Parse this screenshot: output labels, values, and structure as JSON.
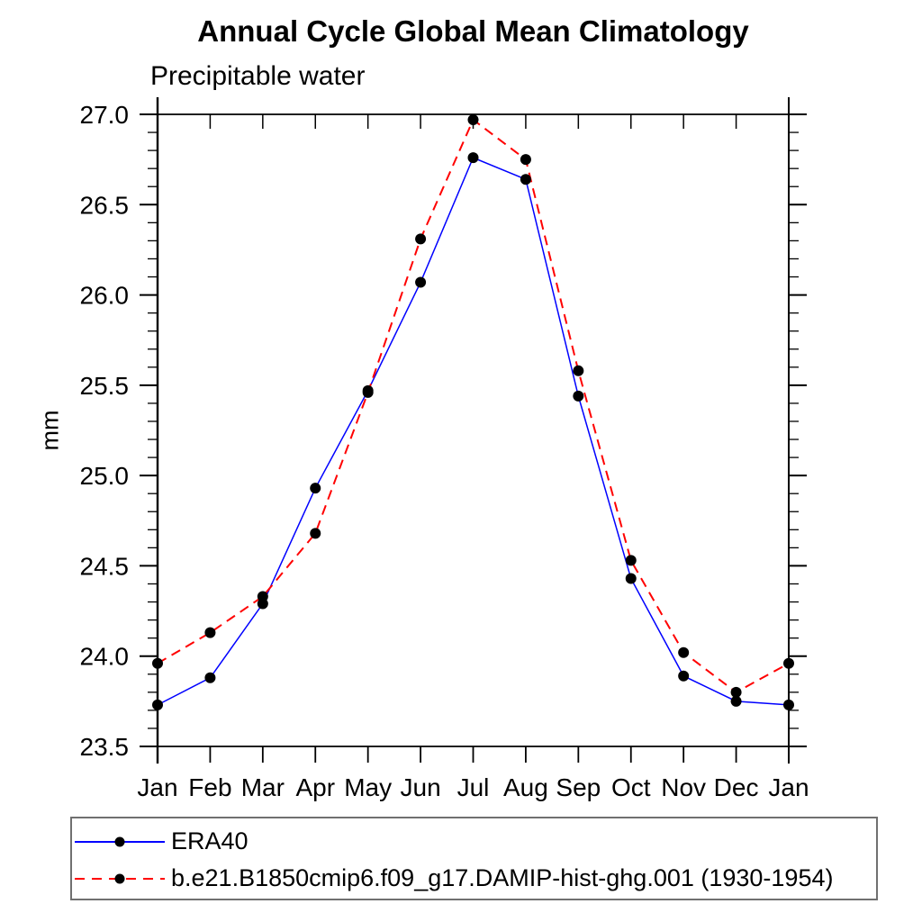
{
  "page": {
    "background": "#ffffff"
  },
  "chart_data": {
    "type": "line",
    "title": "Annual Cycle Global Mean Climatology",
    "subtitle": "Precipitable water",
    "ylabel": "mm",
    "xlabel": "",
    "categories": [
      "Jan",
      "Feb",
      "Mar",
      "Apr",
      "May",
      "Jun",
      "Jul",
      "Aug",
      "Sep",
      "Oct",
      "Nov",
      "Dec",
      "Jan"
    ],
    "ylim": [
      23.5,
      27.0
    ],
    "ytick_major_step": 0.5,
    "ytick_minor_step": 0.1,
    "ytick_labels": [
      "23.5",
      "24.0",
      "24.5",
      "25.0",
      "25.5",
      "26.0",
      "26.5",
      "27.0"
    ],
    "grid": false,
    "legend_position": "bottom",
    "frame_color": "#000000",
    "marker": {
      "shape": "circle",
      "color": "#000000",
      "radius": 6
    },
    "series": [
      {
        "name": "ERA40",
        "color": "#0000ff",
        "style": "solid",
        "values": [
          23.73,
          23.88,
          24.29,
          24.93,
          25.47,
          26.07,
          26.76,
          26.64,
          25.44,
          24.43,
          23.89,
          23.75,
          23.73
        ]
      },
      {
        "name": "b.e21.B1850cmip6.f09_g17.DAMIP-hist-ghg.001 (1930-1954)",
        "color": "#ff0000",
        "style": "dashed",
        "values": [
          23.96,
          24.13,
          24.33,
          24.68,
          25.46,
          26.31,
          26.97,
          26.75,
          25.58,
          24.53,
          24.02,
          23.8,
          23.96
        ]
      }
    ]
  }
}
